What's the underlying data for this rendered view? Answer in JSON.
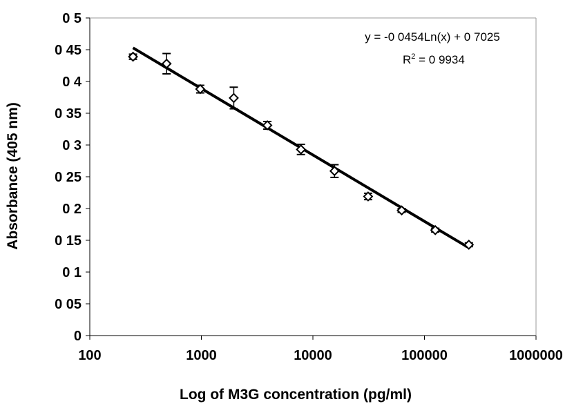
{
  "chart_data": {
    "type": "scatter",
    "xscale": "log",
    "xlim": [
      100,
      1000000
    ],
    "ylim": [
      0,
      0.5
    ],
    "xlabel": "Log of M3G concentration (pg/ml)",
    "ylabel": "Absorbance (405 nm)",
    "xticks": [
      100,
      1000,
      10000,
      100000,
      1000000
    ],
    "xtick_labels": [
      "100",
      "1000",
      "10000",
      "100000",
      "1000000"
    ],
    "yticks": [
      0,
      0.05,
      0.1,
      0.15,
      0.2,
      0.25,
      0.3,
      0.35,
      0.4,
      0.45,
      0.5
    ],
    "ytick_labels": [
      "0",
      "0 05",
      "0 1",
      "0 15",
      "0 2",
      "0 25",
      "0 3",
      "0 35",
      "0 4",
      "0 45",
      "0 5"
    ],
    "grid": false,
    "legend": "none",
    "points": [
      {
        "x": 244,
        "y": 0.439,
        "err": 0.004
      },
      {
        "x": 488,
        "y": 0.428,
        "err": 0.016
      },
      {
        "x": 977,
        "y": 0.388,
        "err": 0.006
      },
      {
        "x": 1953,
        "y": 0.374,
        "err": 0.017
      },
      {
        "x": 3906,
        "y": 0.331,
        "err": 0.006
      },
      {
        "x": 7813,
        "y": 0.293,
        "err": 0.008
      },
      {
        "x": 15625,
        "y": 0.259,
        "err": 0.01
      },
      {
        "x": 31250,
        "y": 0.219,
        "err": 0.005
      },
      {
        "x": 62500,
        "y": 0.197,
        "err": 0.003
      },
      {
        "x": 125000,
        "y": 0.166,
        "err": 0.003
      },
      {
        "x": 250000,
        "y": 0.143,
        "err": 0.003
      }
    ],
    "trendline": {
      "type": "logarithmic",
      "slope": -0.0454,
      "intercept": 0.7025,
      "x_range": [
        244,
        250000
      ],
      "equation_label": "y = -0 0454Ln(x) + 0 7025",
      "r2_prefix": "R",
      "r2_sup": "2",
      "r2_value": " = 0 9934"
    },
    "colors": {
      "marker": "#000000",
      "line": "#000000"
    }
  }
}
